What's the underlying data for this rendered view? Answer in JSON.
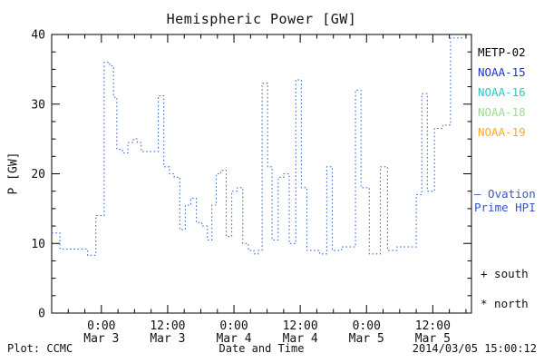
{
  "title": "Hemispheric Power [GW]",
  "ylabel": "P [GW]",
  "xlabel": "Date and Time",
  "plot_credit": "Plot: CCMC",
  "timestamp": "2014/03/05 15:00:12",
  "legend": {
    "satellites": [
      {
        "label": "METP-02",
        "color": "#000000"
      },
      {
        "label": "NOAA-15",
        "color": "#2233cc"
      },
      {
        "label": "NOAA-16",
        "color": "#2ec8c8"
      },
      {
        "label": "NOAA-18",
        "color": "#9ddb90"
      },
      {
        "label": "NOAA-19",
        "color": "#ffa92b"
      }
    ],
    "ovation": {
      "line1": "– Ovation",
      "line2": "Prime HPI",
      "color": "#3355cc"
    },
    "markers": [
      {
        "text": "+ south"
      },
      {
        "text": "* north"
      }
    ]
  },
  "chart_data": {
    "type": "line",
    "line_style": "dotted-step",
    "color": "#4470c4",
    "title": "Hemispheric Power [GW]",
    "xlabel": "Date and Time",
    "ylabel": "P [GW]",
    "ylim": [
      0,
      40
    ],
    "y_major_ticks": [
      0,
      10,
      20,
      30,
      40
    ],
    "y_minor_step": 2.5,
    "x_range_hours": [
      0,
      76
    ],
    "x_start_label": "Mar 2 15:00",
    "grid": false,
    "legend_position": "right",
    "x_ticks": [
      {
        "t": 9,
        "line1": "0:00",
        "line2": "Mar 3"
      },
      {
        "t": 21,
        "line1": "12:00",
        "line2": "Mar 3"
      },
      {
        "t": 33,
        "line1": "0:00",
        "line2": "Mar 4"
      },
      {
        "t": 45,
        "line1": "12:00",
        "line2": "Mar 4"
      },
      {
        "t": 57,
        "line1": "0:00",
        "line2": "Mar 5"
      },
      {
        "t": 69,
        "line1": "12:00",
        "line2": "Mar 5"
      }
    ],
    "steps": [
      [
        0,
        11.5
      ],
      [
        1.5,
        9.2
      ],
      [
        6.5,
        8.3
      ],
      [
        8,
        14
      ],
      [
        9.5,
        36
      ],
      [
        10.5,
        35.5
      ],
      [
        11.2,
        31
      ],
      [
        11.8,
        23.5
      ],
      [
        12.8,
        23
      ],
      [
        13.8,
        24.5
      ],
      [
        14.8,
        25
      ],
      [
        15.5,
        24.5
      ],
      [
        16.2,
        23.2
      ],
      [
        19.3,
        31.2
      ],
      [
        20.3,
        21
      ],
      [
        21.3,
        20
      ],
      [
        22.2,
        19.5
      ],
      [
        23.2,
        12
      ],
      [
        24.2,
        15.5
      ],
      [
        25.2,
        16.5
      ],
      [
        26.2,
        13
      ],
      [
        27.2,
        12.5
      ],
      [
        28.2,
        10.5
      ],
      [
        29,
        15.5
      ],
      [
        29.8,
        20
      ],
      [
        30.6,
        20.5
      ],
      [
        31.6,
        11
      ],
      [
        32.6,
        17.5
      ],
      [
        33.6,
        18
      ],
      [
        34.6,
        10
      ],
      [
        35.6,
        9
      ],
      [
        36.6,
        8.5
      ],
      [
        37.4,
        9
      ],
      [
        38.1,
        33
      ],
      [
        39.1,
        21
      ],
      [
        39.9,
        10.5
      ],
      [
        41,
        19.5
      ],
      [
        42,
        20
      ],
      [
        43,
        10
      ],
      [
        44.2,
        33.5
      ],
      [
        45.2,
        18
      ],
      [
        46.2,
        9
      ],
      [
        48.5,
        8.5
      ],
      [
        49.8,
        21
      ],
      [
        50.8,
        9
      ],
      [
        52.5,
        9.5
      ],
      [
        55,
        32
      ],
      [
        56,
        18
      ],
      [
        57.5,
        8.5
      ],
      [
        59.5,
        21
      ],
      [
        60.8,
        9
      ],
      [
        62.5,
        9.5
      ],
      [
        66,
        17
      ],
      [
        67,
        31.5
      ],
      [
        68,
        17.5
      ],
      [
        69.3,
        26.5
      ],
      [
        70.8,
        27
      ],
      [
        72.2,
        39.5
      ]
    ],
    "t_end": 74.5
  }
}
